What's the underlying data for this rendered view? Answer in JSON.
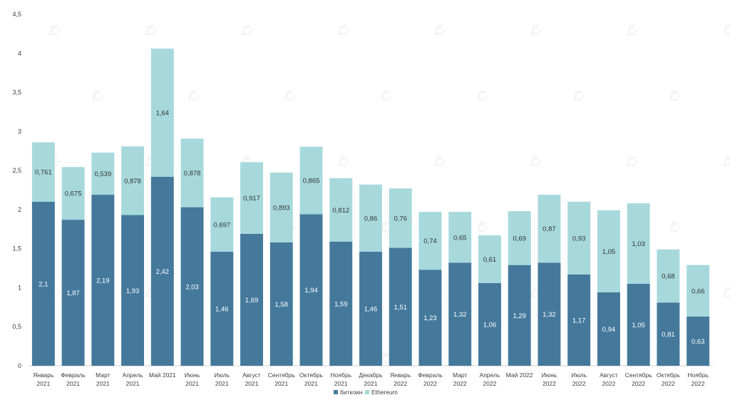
{
  "chart_data": {
    "type": "bar",
    "stacked": true,
    "title": "",
    "xlabel": "",
    "ylabel": "",
    "ylim": [
      0,
      4.5
    ],
    "yticks": [
      "0",
      "0,5",
      "1",
      "1,5",
      "2",
      "2,5",
      "3",
      "3,5",
      "4",
      "4,5"
    ],
    "grid": false,
    "legend_position": "bottom",
    "categories": [
      [
        "Январь",
        "2021"
      ],
      [
        "Февраль",
        "2021"
      ],
      [
        "Март",
        "2021"
      ],
      [
        "Апрель",
        "2021"
      ],
      [
        "Май 2021"
      ],
      [
        "Июнь",
        "2021"
      ],
      [
        "Июль",
        "2021"
      ],
      [
        "Август",
        "2021"
      ],
      [
        "Сентябрь",
        "2021"
      ],
      [
        "Октябрь",
        "2021"
      ],
      [
        "Ноябрь",
        "2021"
      ],
      [
        "Декабрь",
        "2021"
      ],
      [
        "Январь",
        "2022"
      ],
      [
        "Февраль",
        "2022"
      ],
      [
        "Март",
        "2022"
      ],
      [
        "Апрель",
        "2022"
      ],
      [
        "Май 2022"
      ],
      [
        "Июнь",
        "2022"
      ],
      [
        "Июль",
        "2022"
      ],
      [
        "Август",
        "2022"
      ],
      [
        "Сентябрь",
        "2022"
      ],
      [
        "Октябрь",
        "2022"
      ],
      [
        "Ноябрь",
        "2022"
      ]
    ],
    "series": [
      {
        "name": "биткоин",
        "color": "#44799c",
        "label_color": "#ffffff",
        "values": [
          2.1,
          1.87,
          2.19,
          1.93,
          2.42,
          2.03,
          1.46,
          1.69,
          1.58,
          1.94,
          1.59,
          1.46,
          1.51,
          1.23,
          1.32,
          1.06,
          1.29,
          1.32,
          1.17,
          0.94,
          1.05,
          0.81,
          0.63
        ],
        "labels": [
          "2,1",
          "1,87",
          "2,19",
          "1,93",
          "2,42",
          "2,03",
          "1,46",
          "1,69",
          "1,58",
          "1,94",
          "1,59",
          "1,46",
          "1,51",
          "1,23",
          "1,32",
          "1,06",
          "1,29",
          "1,32",
          "1,17",
          "0,94",
          "1,05",
          "0,81",
          "0,63"
        ]
      },
      {
        "name": "Ethereum",
        "color": "#a7d9dc",
        "label_color": "#333333",
        "values": [
          0.761,
          0.675,
          0.539,
          0.878,
          1.64,
          0.878,
          0.697,
          0.917,
          0.893,
          0.865,
          0.812,
          0.86,
          0.76,
          0.74,
          0.65,
          0.61,
          0.69,
          0.87,
          0.93,
          1.05,
          1.03,
          0.68,
          0.66
        ],
        "labels": [
          "0,761",
          "0,675",
          "0,539",
          "0,878",
          "1,64",
          "0,878",
          "0,697",
          "0,917",
          "0,893",
          "0,865",
          "0,812",
          "0,86",
          "0,76",
          "0,74",
          "0,65",
          "0,61",
          "0,69",
          "0,87",
          "0,93",
          "1,05",
          "1,03",
          "0,68",
          "0,66"
        ]
      }
    ]
  }
}
